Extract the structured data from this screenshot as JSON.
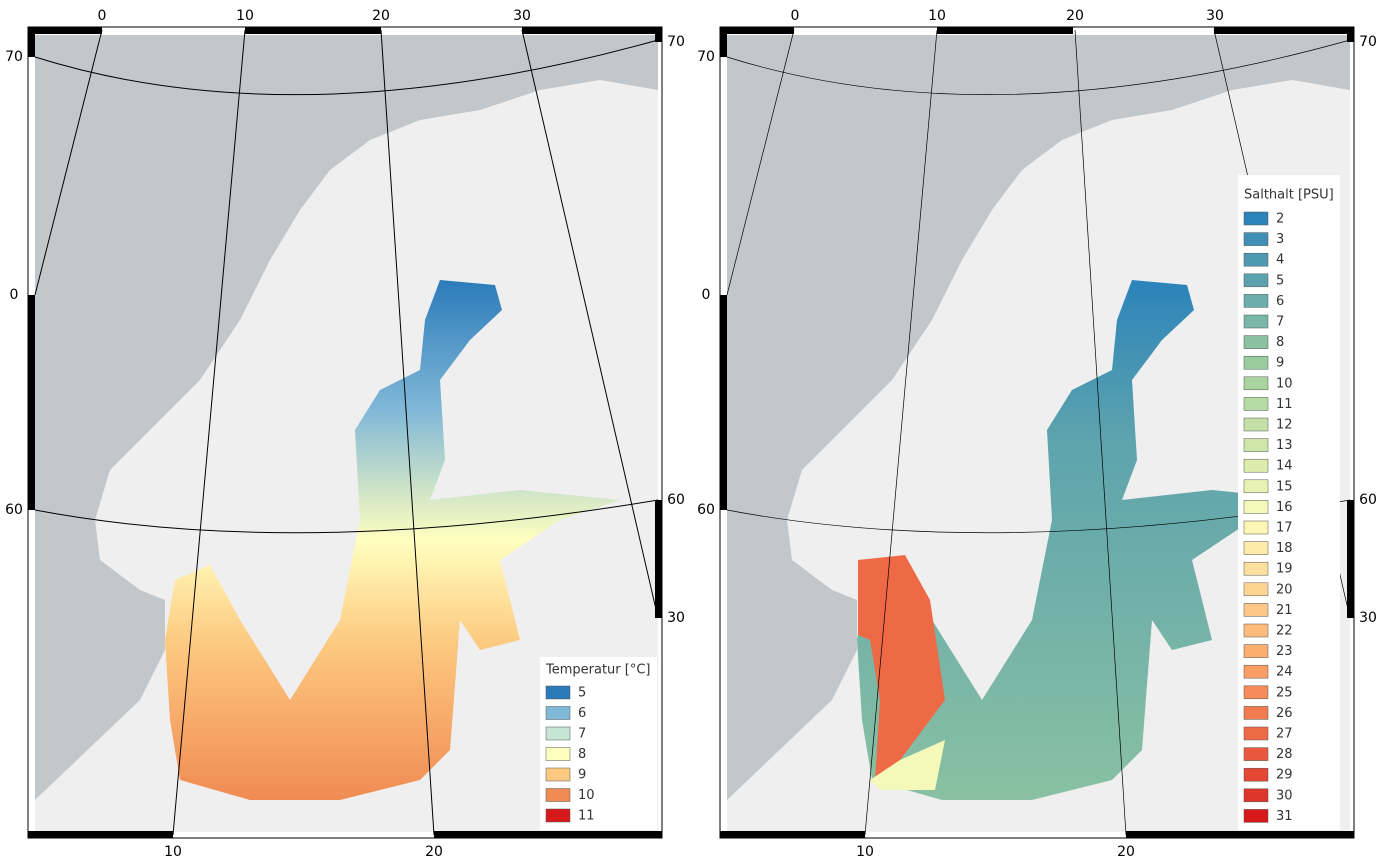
{
  "maps": [
    {
      "axis_labels": {
        "top": [
          "0",
          "10",
          "20",
          "30"
        ],
        "bottom": [
          "10",
          "20"
        ],
        "left": [
          "70",
          "0",
          "60"
        ],
        "right": [
          "70",
          "60",
          "30"
        ]
      },
      "legend": {
        "title": "Temperatur [°C]",
        "items": [
          {
            "label": "5",
            "color": "#2b7bb9"
          },
          {
            "label": "6",
            "color": "#80b8d8"
          },
          {
            "label": "7",
            "color": "#c6e5d5"
          },
          {
            "label": "8",
            "color": "#ffffbf"
          },
          {
            "label": "9",
            "color": "#fdc980"
          },
          {
            "label": "10",
            "color": "#f08b53"
          },
          {
            "label": "11",
            "color": "#d7191c"
          }
        ]
      }
    },
    {
      "axis_labels": {
        "top": [
          "0",
          "10",
          "20",
          "30"
        ],
        "bottom": [
          "10",
          "20"
        ],
        "left": [
          "70",
          "0",
          "60"
        ],
        "right": [
          "70",
          "60",
          "30"
        ]
      },
      "legend": {
        "title": "Salthalt [PSU]",
        "items": [
          {
            "label": "2",
            "color": "#2b83ba"
          },
          {
            "label": "3",
            "color": "#3f8fb6"
          },
          {
            "label": "4",
            "color": "#4e99b2"
          },
          {
            "label": "5",
            "color": "#5da3ae"
          },
          {
            "label": "6",
            "color": "#6badaa"
          },
          {
            "label": "7",
            "color": "#7ab7a6"
          },
          {
            "label": "8",
            "color": "#8ac1a2"
          },
          {
            "label": "9",
            "color": "#9acb9f"
          },
          {
            "label": "10",
            "color": "#a9d4a0"
          },
          {
            "label": "11",
            "color": "#b6daa3"
          },
          {
            "label": "12",
            "color": "#c3e0a6"
          },
          {
            "label": "13",
            "color": "#d0e6a9"
          },
          {
            "label": "14",
            "color": "#dcecad"
          },
          {
            "label": "15",
            "color": "#e8f2b3"
          },
          {
            "label": "16",
            "color": "#f4f8b8"
          },
          {
            "label": "17",
            "color": "#fff6b5"
          },
          {
            "label": "18",
            "color": "#feebaa"
          },
          {
            "label": "19",
            "color": "#fee09e"
          },
          {
            "label": "20",
            "color": "#fed493"
          },
          {
            "label": "21",
            "color": "#fdc887"
          },
          {
            "label": "22",
            "color": "#fdbc7b"
          },
          {
            "label": "23",
            "color": "#fcae6f"
          },
          {
            "label": "24",
            "color": "#f99d64"
          },
          {
            "label": "25",
            "color": "#f68c5a"
          },
          {
            "label": "26",
            "color": "#f27b50"
          },
          {
            "label": "27",
            "color": "#ee6a46"
          },
          {
            "label": "28",
            "color": "#e9583c"
          },
          {
            "label": "29",
            "color": "#e44733"
          },
          {
            "label": "30",
            "color": "#de352a"
          },
          {
            "label": "31",
            "color": "#d7191c"
          }
        ]
      }
    }
  ]
}
